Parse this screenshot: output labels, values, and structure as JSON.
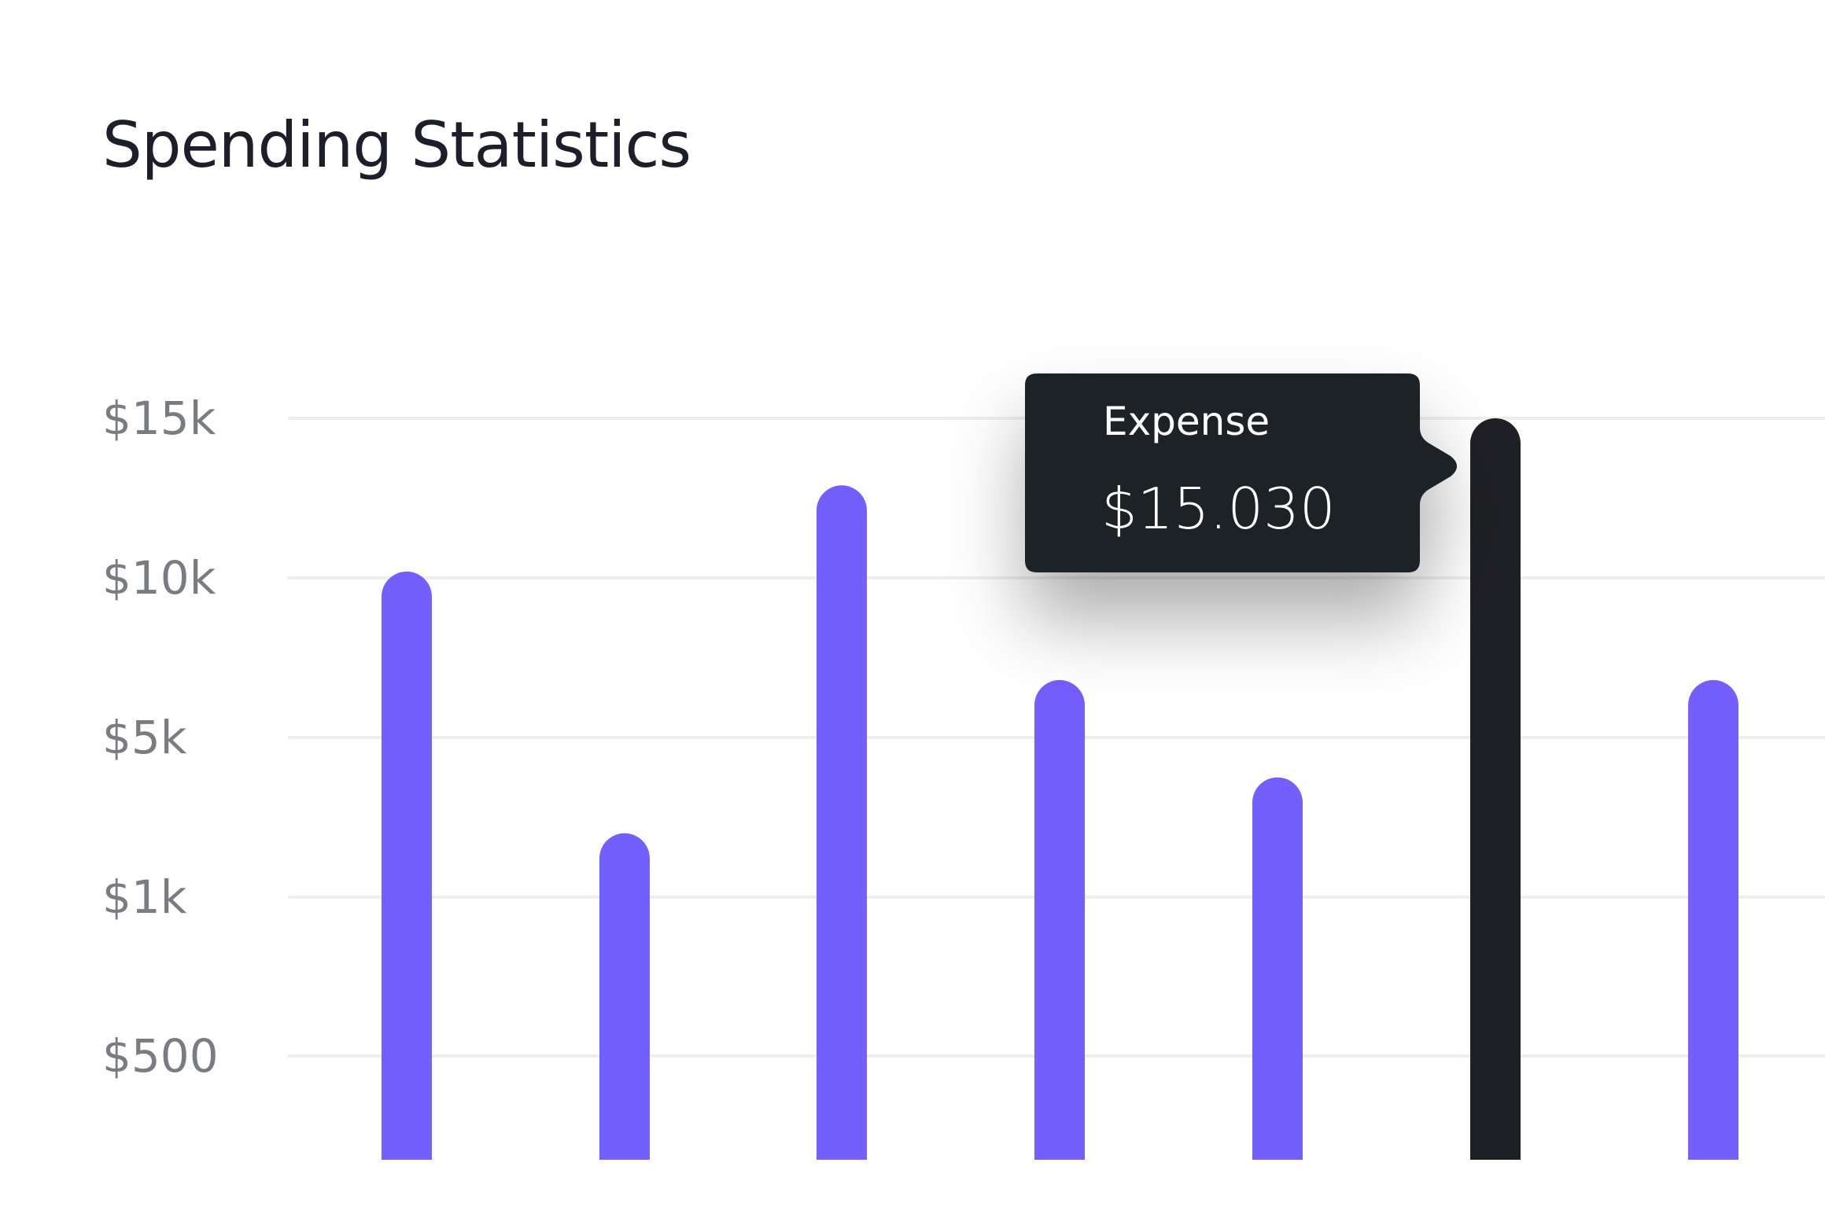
{
  "chart_data": {
    "type": "bar",
    "title": "Spending Statistics",
    "xlabel": "",
    "ylabel": "",
    "y_ticks": [
      "$500",
      "$1k",
      "$5k",
      "$10k",
      "$15k"
    ],
    "y_tick_values": [
      500,
      1000,
      5000,
      10000,
      15000
    ],
    "y_scale": "categorical-tick",
    "grid": true,
    "series": [
      {
        "values": [
          10200,
          2600,
          12900,
          6800,
          4000,
          15030,
          6800
        ]
      }
    ],
    "highlight_index": 5,
    "colors": {
      "bar": "#735efe",
      "highlight": "#1f2025",
      "grid": "#eeeeef",
      "tick_label": "#7b7c82",
      "title": "#1c1f2a",
      "tooltip_bg": "#1f2025"
    },
    "tooltip": {
      "title": "Expense",
      "value": "$15.030"
    }
  }
}
